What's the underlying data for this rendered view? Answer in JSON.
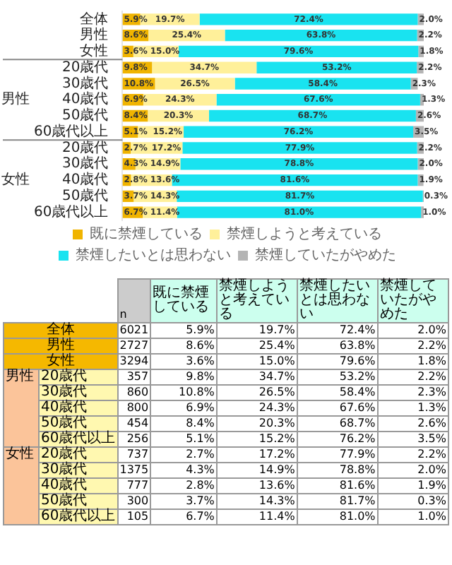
{
  "chart_data": {
    "type": "bar",
    "orientation": "horizontal",
    "stacked": true,
    "legend": "bottom",
    "xlim": [
      0,
      100
    ],
    "categories": [
      "全体",
      "男性",
      "女性",
      "20歳代",
      "30歳代",
      "40歳代",
      "50歳代",
      "60歳代以上",
      "20歳代",
      "30歳代",
      "40歳代",
      "50歳代",
      "60歳代以上"
    ],
    "series": [
      {
        "name": "既に禁煙している",
        "color": "#f0b400",
        "values": [
          5.9,
          8.6,
          3.6,
          9.8,
          10.8,
          6.9,
          8.4,
          5.1,
          2.7,
          4.3,
          2.8,
          3.7,
          6.7
        ],
        "value_labels": [
          "5.9%",
          "8.6%",
          "3.6%",
          "9.8%",
          "10.8%",
          "6.9%",
          "8.4%",
          "5.1%",
          "2.7%",
          "4.3%",
          "2.8%",
          "3.7%",
          "6.7%"
        ]
      },
      {
        "name": "禁煙しようと考えている",
        "color": "#fff09a",
        "values": [
          19.7,
          25.4,
          15.0,
          34.7,
          26.5,
          24.3,
          20.3,
          15.2,
          17.2,
          14.9,
          13.6,
          14.3,
          11.4
        ],
        "value_labels": [
          "19.7%",
          "25.4%",
          "15.0%",
          "34.7%",
          "26.5%",
          "24.3%",
          "20.3%",
          "15.2%",
          "17.2%",
          "14.9%",
          "13.6%",
          "14.3%",
          "11.4%"
        ]
      },
      {
        "name": "禁煙したいとは思わない",
        "color": "#19e3f0",
        "values": [
          72.4,
          63.8,
          79.6,
          53.2,
          58.4,
          67.6,
          68.7,
          76.2,
          77.9,
          78.8,
          81.6,
          81.7,
          81.0
        ],
        "value_labels": [
          "72.4%",
          "63.8%",
          "79.6%",
          "53.2%",
          "58.4%",
          "67.6%",
          "68.7%",
          "76.2%",
          "77.9%",
          "78.8%",
          "81.6%",
          "81.7%",
          "81.0%"
        ]
      },
      {
        "name": "禁煙していたがやめた",
        "color": "#b4b4b4",
        "values": [
          2.0,
          2.2,
          1.8,
          2.2,
          2.3,
          1.3,
          2.6,
          3.5,
          2.2,
          2.0,
          1.9,
          0.3,
          1.0
        ],
        "value_labels": [
          "2.0%",
          "2.2%",
          "1.8%",
          "2.2%",
          "2.3%",
          "1.3%",
          "2.6%",
          "3.5%",
          "2.2%",
          "2.0%",
          "1.9%",
          "0.3%",
          "1.0%"
        ]
      }
    ],
    "annotations": [
      "男性",
      "女性",
      "n",
      "6021",
      "2727",
      "3294",
      "357",
      "860",
      "800",
      "454",
      "256",
      "737",
      "1375",
      "777",
      "300",
      "105"
    ]
  }
}
